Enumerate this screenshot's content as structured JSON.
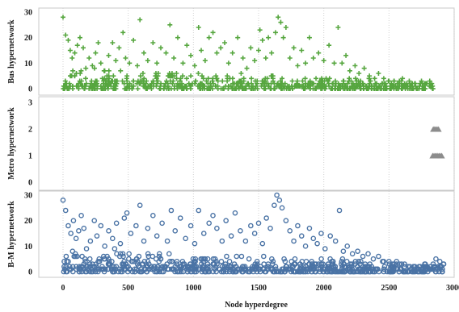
{
  "chart_data": {
    "type": "scatter",
    "xlabel": "Node hyperdegree",
    "xlim": [
      -180,
      3000
    ],
    "xticks": [
      0,
      500,
      1000,
      1500,
      2000,
      2500,
      3000
    ],
    "grid": true,
    "panels": [
      {
        "ylabel": "Bus hypernetwork",
        "ylim": [
          -2,
          30
        ],
        "yticks": [
          0,
          10,
          20,
          30
        ],
        "marker": "plus",
        "color": "#56a63f",
        "points": [
          [
            0,
            28
          ],
          [
            20,
            21
          ],
          [
            40,
            19
          ],
          [
            55,
            15
          ],
          [
            70,
            12
          ],
          [
            90,
            14
          ],
          [
            110,
            17
          ],
          [
            130,
            20
          ],
          [
            155,
            16
          ],
          [
            175,
            8
          ],
          [
            200,
            12
          ],
          [
            225,
            9
          ],
          [
            250,
            14
          ],
          [
            270,
            18
          ],
          [
            290,
            10
          ],
          [
            320,
            7
          ],
          [
            350,
            13
          ],
          [
            380,
            18
          ],
          [
            405,
            11
          ],
          [
            430,
            16
          ],
          [
            460,
            22
          ],
          [
            480,
            12
          ],
          [
            510,
            10
          ],
          [
            540,
            19
          ],
          [
            570,
            9
          ],
          [
            590,
            27
          ],
          [
            620,
            14
          ],
          [
            650,
            11
          ],
          [
            690,
            18
          ],
          [
            720,
            10
          ],
          [
            750,
            16
          ],
          [
            790,
            14
          ],
          [
            820,
            25
          ],
          [
            850,
            12
          ],
          [
            880,
            20
          ],
          [
            920,
            10
          ],
          [
            950,
            17
          ],
          [
            980,
            13
          ],
          [
            1010,
            9
          ],
          [
            1040,
            24
          ],
          [
            1060,
            15
          ],
          [
            1090,
            11
          ],
          [
            1120,
            20
          ],
          [
            1150,
            22
          ],
          [
            1180,
            14
          ],
          [
            1210,
            16
          ],
          [
            1240,
            18
          ],
          [
            1270,
            10
          ],
          [
            1300,
            14
          ],
          [
            1340,
            20
          ],
          [
            1380,
            12
          ],
          [
            1410,
            8
          ],
          [
            1440,
            16
          ],
          [
            1470,
            11
          ],
          [
            1500,
            15
          ],
          [
            1510,
            23
          ],
          [
            1530,
            19
          ],
          [
            1555,
            12
          ],
          [
            1575,
            20
          ],
          [
            1600,
            14
          ],
          [
            1630,
            22
          ],
          [
            1650,
            28
          ],
          [
            1670,
            26
          ],
          [
            1690,
            20
          ],
          [
            1710,
            24
          ],
          [
            1740,
            12
          ],
          [
            1770,
            16
          ],
          [
            1800,
            9
          ],
          [
            1830,
            15
          ],
          [
            1860,
            10
          ],
          [
            1890,
            20
          ],
          [
            1920,
            12
          ],
          [
            1960,
            14
          ],
          [
            2000,
            11
          ],
          [
            2040,
            17
          ],
          [
            2080,
            10
          ],
          [
            2110,
            24
          ],
          [
            2140,
            10
          ],
          [
            2170,
            13
          ],
          [
            2200,
            7
          ],
          [
            2240,
            9
          ],
          [
            2270,
            6
          ],
          [
            2310,
            8
          ],
          [
            2350,
            5
          ],
          [
            2390,
            4
          ],
          [
            2420,
            6
          ],
          [
            2460,
            4
          ],
          [
            2500,
            3
          ],
          [
            2540,
            3
          ],
          [
            2580,
            3
          ],
          [
            2620,
            2
          ],
          [
            2660,
            2
          ],
          [
            2700,
            2
          ],
          [
            2740,
            2
          ],
          [
            2780,
            2
          ],
          [
            2820,
            1
          ]
        ],
        "base_cloud": {
          "x_range": [
            0,
            2840
          ],
          "y_range": [
            0,
            6
          ]
        }
      },
      {
        "ylabel": "Metro hypernetwork",
        "ylim": [
          -0.2,
          3
        ],
        "yticks": [
          0,
          1,
          2,
          3
        ],
        "marker": "triangle",
        "color": "#8c8c8c",
        "points": [
          [
            2840,
            2
          ],
          [
            2850,
            2
          ],
          [
            2860,
            2
          ],
          [
            2870,
            2
          ],
          [
            2880,
            2
          ],
          [
            2835,
            1
          ],
          [
            2845,
            1
          ],
          [
            2855,
            1
          ],
          [
            2865,
            1
          ],
          [
            2875,
            1
          ],
          [
            2885,
            1
          ],
          [
            2895,
            1
          ],
          [
            2905,
            1
          ]
        ]
      },
      {
        "ylabel": "B-M hypernetwork",
        "ylim": [
          -2,
          30
        ],
        "yticks": [
          0,
          10,
          20,
          30
        ],
        "marker": "circle",
        "color": "#4a73a5",
        "points": [
          [
            0,
            28
          ],
          [
            20,
            24
          ],
          [
            40,
            18
          ],
          [
            60,
            15
          ],
          [
            80,
            20
          ],
          [
            100,
            13
          ],
          [
            120,
            16
          ],
          [
            140,
            22
          ],
          [
            160,
            17
          ],
          [
            180,
            9
          ],
          [
            210,
            12
          ],
          [
            240,
            20
          ],
          [
            260,
            14
          ],
          [
            290,
            18
          ],
          [
            320,
            10
          ],
          [
            350,
            16
          ],
          [
            380,
            13
          ],
          [
            410,
            19
          ],
          [
            440,
            11
          ],
          [
            470,
            21
          ],
          [
            490,
            23
          ],
          [
            520,
            15
          ],
          [
            560,
            18
          ],
          [
            590,
            26
          ],
          [
            620,
            12
          ],
          [
            650,
            17
          ],
          [
            690,
            22
          ],
          [
            720,
            14
          ],
          [
            760,
            19
          ],
          [
            800,
            12
          ],
          [
            830,
            24
          ],
          [
            860,
            16
          ],
          [
            900,
            21
          ],
          [
            940,
            13
          ],
          [
            980,
            18
          ],
          [
            1010,
            11
          ],
          [
            1040,
            24
          ],
          [
            1080,
            15
          ],
          [
            1120,
            19
          ],
          [
            1150,
            22
          ],
          [
            1180,
            17
          ],
          [
            1220,
            12
          ],
          [
            1250,
            20
          ],
          [
            1290,
            14
          ],
          [
            1320,
            23
          ],
          [
            1360,
            16
          ],
          [
            1400,
            12
          ],
          [
            1440,
            18
          ],
          [
            1470,
            15
          ],
          [
            1500,
            19
          ],
          [
            1530,
            11
          ],
          [
            1560,
            21
          ],
          [
            1590,
            17
          ],
          [
            1620,
            26
          ],
          [
            1640,
            30
          ],
          [
            1660,
            28
          ],
          [
            1680,
            25
          ],
          [
            1710,
            20
          ],
          [
            1740,
            16
          ],
          [
            1770,
            12
          ],
          [
            1800,
            18
          ],
          [
            1830,
            14
          ],
          [
            1860,
            10
          ],
          [
            1890,
            17
          ],
          [
            1920,
            13
          ],
          [
            1950,
            11
          ],
          [
            1980,
            15
          ],
          [
            2010,
            9
          ],
          [
            2050,
            14
          ],
          [
            2090,
            12
          ],
          [
            2120,
            24
          ],
          [
            2150,
            8
          ],
          [
            2180,
            10
          ],
          [
            2220,
            7
          ],
          [
            2260,
            8
          ],
          [
            2300,
            6
          ],
          [
            2340,
            7
          ],
          [
            2380,
            5
          ],
          [
            2420,
            6
          ],
          [
            2460,
            4
          ],
          [
            2500,
            4
          ],
          [
            2540,
            3
          ],
          [
            2580,
            3
          ],
          [
            2620,
            3
          ],
          [
            2660,
            2
          ],
          [
            2700,
            2
          ],
          [
            2740,
            2
          ],
          [
            2780,
            2
          ],
          [
            2820,
            2
          ],
          [
            2860,
            5
          ],
          [
            2890,
            4
          ],
          [
            2920,
            3
          ]
        ],
        "base_cloud": {
          "x_range": [
            0,
            2920
          ],
          "y_range": [
            0,
            6
          ]
        }
      }
    ]
  }
}
